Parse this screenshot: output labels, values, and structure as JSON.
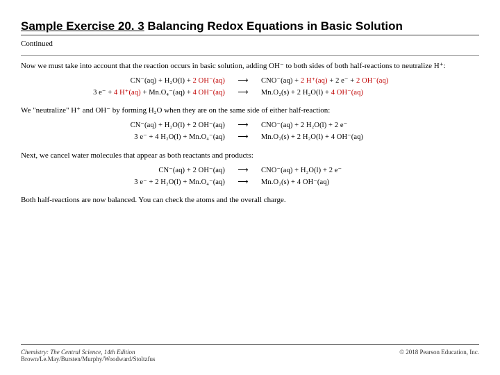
{
  "header": {
    "title_prefix": "Sample Exercise 20. 3",
    "title_rest": " Balancing Redox Equations in Basic Solution",
    "continued": "Continued"
  },
  "para1": "Now we must take into account that the reaction occurs in basic solution, adding OH⁻ to both sides of both half-reactions to neutralize H⁺:",
  "eq1": {
    "row1_lhs": "CN⁻(aq) + H₂O(l) + ",
    "row1_lhs_red": "2 OH⁻(aq)",
    "row1_rhs_a": "CNO⁻(aq) + ",
    "row1_rhs_red1": "2 H⁺(aq)",
    "row1_rhs_b": " + 2 e⁻ + ",
    "row1_rhs_red2": "2 OH⁻(aq)",
    "row2_lhs_a": "3 e⁻ + ",
    "row2_lhs_red1": "4 H⁺(aq)",
    "row2_lhs_b": " + Mn.O₄⁻(aq) + ",
    "row2_lhs_red2": "4 OH⁻(aq)",
    "row2_rhs_a": "Mn.O₂(s) + 2 H₂O(l) + ",
    "row2_rhs_red": "4 OH⁻(aq)"
  },
  "para2": "We \"neutralize\" H⁺ and OH⁻ by forming H₂O when they are on the same side of either half-reaction:",
  "eq2": {
    "row1_lhs": "CN⁻(aq) + H₂O(l) + 2 OH⁻(aq)",
    "row1_rhs": "CNO⁻(aq) + 2 H₂O(l) + 2 e⁻",
    "row2_lhs": "3 e⁻ + 4 H₂O(l) + Mn.O₄⁻(aq)",
    "row2_rhs": "Mn.O₂(s) + 2 H₂O(l) + 4 OH⁻(aq)"
  },
  "para3": "Next, we cancel water molecules that appear as both reactants and products:",
  "eq3": {
    "row1_lhs": "CN⁻(aq) + 2 OH⁻(aq)",
    "row1_rhs": "CNO⁻(aq) + H₂O(l) + 2 e⁻",
    "row2_lhs": "3 e⁻ + 2 H₂O(l) + Mn.O₄⁻(aq)",
    "row2_rhs": "Mn.O₂(s) + 4 OH⁻(aq)"
  },
  "para4": "Both half-reactions are now balanced. You can check the atoms and the overall charge.",
  "footer": {
    "book": "Chemistry: The Central Science",
    "edition": ", 14th Edition",
    "authors": "Brown/Le.May/Bursten/Murphy/Woodward/Stoltzfus",
    "copyright": "© 2018 Pearson Education, Inc."
  },
  "arrow_glyph": "⟶"
}
